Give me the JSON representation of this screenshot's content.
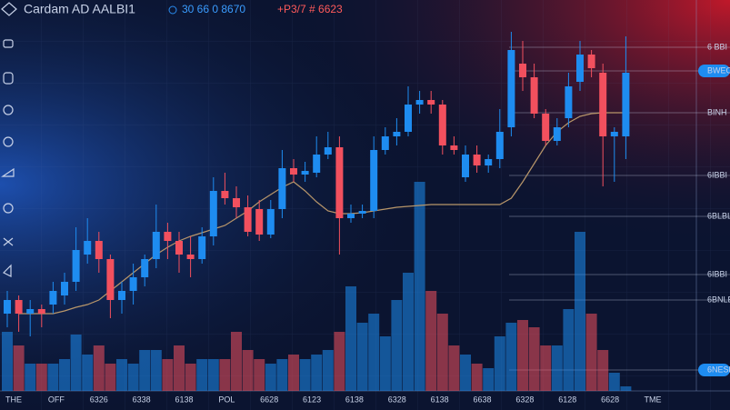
{
  "header": {
    "title": "Cardam AD AALBI1",
    "quote": "30 66 0 8670",
    "change": "+P3/7 # 6623"
  },
  "chart_data": {
    "type": "candlestick",
    "open": [
      85,
      100,
      85,
      90,
      95,
      105,
      120,
      150,
      165,
      145,
      100,
      110,
      125,
      145,
      175,
      165,
      150,
      145,
      170,
      220,
      212,
      202,
      200,
      172,
      200,
      245,
      238,
      240,
      260,
      268,
      190,
      195,
      198,
      265,
      280,
      285,
      315,
      320,
      315,
      270,
      235,
      260,
      248,
      255,
      290,
      360,
      345,
      305,
      275,
      300,
      340,
      370,
      350,
      280,
      280
    ],
    "close": [
      100,
      85,
      90,
      85,
      110,
      120,
      155,
      165,
      145,
      100,
      110,
      125,
      145,
      175,
      165,
      150,
      145,
      170,
      220,
      212,
      202,
      175,
      172,
      200,
      245,
      238,
      242,
      260,
      268,
      190,
      195,
      198,
      265,
      280,
      285,
      315,
      320,
      315,
      270,
      265,
      260,
      248,
      255,
      285,
      375,
      345,
      305,
      275,
      290,
      335,
      370,
      355,
      280,
      285,
      350
    ],
    "high": [
      110,
      105,
      100,
      95,
      120,
      130,
      180,
      190,
      175,
      150,
      120,
      140,
      150,
      205,
      185,
      175,
      170,
      180,
      235,
      240,
      225,
      215,
      210,
      210,
      265,
      255,
      252,
      280,
      285,
      280,
      205,
      205,
      280,
      290,
      300,
      335,
      330,
      330,
      320,
      280,
      270,
      270,
      260,
      310,
      395,
      385,
      360,
      310,
      300,
      350,
      385,
      375,
      360,
      290,
      390
    ],
    "low": [
      70,
      65,
      60,
      70,
      85,
      95,
      110,
      140,
      130,
      80,
      85,
      95,
      115,
      135,
      145,
      130,
      125,
      140,
      160,
      205,
      190,
      170,
      165,
      168,
      190,
      230,
      230,
      235,
      255,
      150,
      185,
      190,
      190,
      260,
      270,
      280,
      305,
      305,
      260,
      260,
      230,
      240,
      240,
      245,
      280,
      330,
      300,
      270,
      270,
      290,
      330,
      345,
      225,
      230,
      255
    ],
    "volume": [
      65,
      50,
      30,
      30,
      30,
      35,
      62,
      40,
      50,
      30,
      35,
      30,
      45,
      45,
      35,
      50,
      30,
      35,
      35,
      35,
      65,
      45,
      35,
      30,
      35,
      40,
      35,
      40,
      45,
      65,
      115,
      75,
      85,
      60,
      100,
      130,
      230,
      110,
      85,
      50,
      40,
      30,
      25,
      60,
      75,
      78,
      70,
      50,
      50,
      90,
      175,
      85,
      45,
      20,
      5
    ],
    "moving_average": {
      "color": "#b8966a",
      "values": [
        null,
        85,
        85,
        85,
        85,
        88,
        92,
        95,
        100,
        110,
        120,
        130,
        140,
        150,
        158,
        165,
        170,
        174,
        178,
        182,
        190,
        198,
        208,
        216,
        224,
        230,
        220,
        208,
        198,
        195,
        195,
        196,
        198,
        200,
        202,
        203,
        204,
        205,
        205,
        205,
        205,
        205,
        205,
        205,
        212,
        230,
        250,
        270,
        285,
        295,
        302,
        305,
        306,
        306,
        306
      ]
    },
    "up_color": "#1e8cf0",
    "down_color": "#f2505e",
    "ylim": [
      0,
      400
    ],
    "yticks": [
      {
        "value": 378,
        "label": "6 BBI"
      },
      {
        "value": 352,
        "label": "BWEC"
      },
      {
        "value": 306,
        "label": "BINH"
      },
      {
        "value": 237,
        "label": "6IBBI"
      },
      {
        "value": 192,
        "label": "6BLBL"
      },
      {
        "value": 128,
        "label": "6IBBI"
      },
      {
        "value": 100,
        "label": "6BNLE"
      },
      {
        "value": 23,
        "label": "6NESE"
      }
    ],
    "x_labels": [
      "THE",
      "OFF",
      "6326",
      "6338",
      "6138",
      "POL",
      "6628",
      "6123",
      "6138",
      "6328",
      "6138",
      "6638",
      "6328",
      "6128",
      "6628",
      "TME"
    ],
    "grid": true
  }
}
